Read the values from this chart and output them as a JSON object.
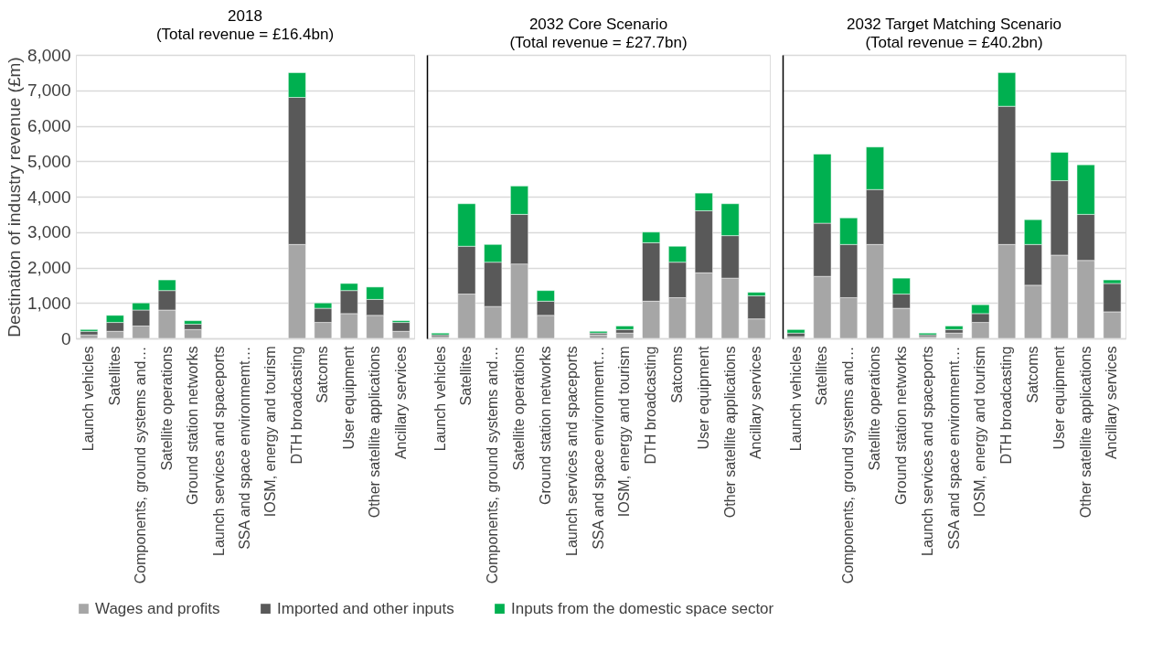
{
  "chart_data": [
    {
      "type": "bar",
      "stacked": true,
      "title": "2018",
      "subtitle": "(Total revenue = £16.4bn)",
      "ylabel": "Destination of industry revenue (£m)",
      "categories": [
        "Launch vehicles",
        "Satellites",
        "Components, ground systems and…",
        "Satellite operations",
        "Ground station networks",
        "Launch services and spaceports",
        "SSA and space environmemt…",
        "IOSM, energy and tourism",
        "DTH broadcasting",
        "Satcoms",
        "User equipment",
        "Other satellite applications",
        "Ancillary services"
      ],
      "ylim": [
        0,
        8000
      ],
      "yticks": [
        0,
        {
          "value": 1000,
          "label": "1,000"
        },
        {
          "value": 2000,
          "label": "2,000"
        },
        {
          "value": 3000,
          "label": "3,000"
        },
        {
          "value": 4000,
          "label": "4,000"
        },
        {
          "value": 5000,
          "label": "5,000"
        },
        {
          "value": 6000,
          "label": "6,000"
        },
        {
          "value": 7000,
          "label": "7,000"
        },
        {
          "value": 8000,
          "label": "8,000"
        }
      ],
      "grid": "y",
      "legend": "bottom",
      "series": [
        {
          "name": "Wages and profits",
          "color": "#a6a6a6",
          "values": [
            100,
            200,
            350,
            800,
            250,
            null,
            null,
            null,
            2650,
            450,
            700,
            650,
            200
          ]
        },
        {
          "name": "Imported and other inputs",
          "color": "#595959",
          "values": [
            100,
            250,
            450,
            550,
            150,
            null,
            null,
            null,
            4150,
            400,
            650,
            450,
            250
          ]
        },
        {
          "name": "Inputs from the domestic space sector",
          "color": "#00b050",
          "values": [
            50,
            200,
            200,
            300,
            100,
            null,
            null,
            null,
            700,
            150,
            200,
            350,
            50
          ]
        }
      ]
    },
    {
      "type": "bar",
      "stacked": true,
      "title": "2032 Core Scenario",
      "subtitle": "(Total revenue = £27.7bn)",
      "categories": [
        "Launch vehicles",
        "Satellites",
        "Components, ground systems and…",
        "Satellite operations",
        "Ground station networks",
        "Launch services and spaceports",
        "SSA and space environmemt…",
        "IOSM, energy and tourism",
        "DTH broadcasting",
        "Satcoms",
        "User equipment",
        "Other satellite applications",
        "Ancillary services"
      ],
      "ylim": [
        0,
        8000
      ],
      "yticks": [
        0,
        1000,
        2000,
        3000,
        4000,
        5000,
        6000,
        7000,
        8000
      ],
      "tick_labels": "x",
      "grid": "y",
      "legend": "bottom",
      "series": [
        {
          "name": "Wages and profits",
          "color": "#a6a6a6",
          "values": [
            50,
            1250,
            900,
            2100,
            650,
            null,
            100,
            150,
            1050,
            1150,
            1850,
            1700,
            550
          ]
        },
        {
          "name": "Imported and other inputs",
          "color": "#595959",
          "values": [
            50,
            1350,
            1250,
            1400,
            400,
            null,
            50,
            100,
            1650,
            1000,
            1750,
            1200,
            650
          ]
        },
        {
          "name": "Inputs from the domestic space sector",
          "color": "#00b050",
          "values": [
            50,
            1200,
            500,
            800,
            300,
            null,
            50,
            100,
            300,
            450,
            500,
            900,
            100
          ]
        }
      ]
    },
    {
      "type": "bar",
      "stacked": true,
      "title": "2032 Target Matching Scenario",
      "subtitle": "(Total revenue = £40.2bn)",
      "categories": [
        "Launch vehicles",
        "Satellites",
        "Components, ground systems and…",
        "Satellite operations",
        "Ground station networks",
        "Launch services and spaceports",
        "SSA and space environmemt…",
        "IOSM, energy and tourism",
        "DTH broadcasting",
        "Satcoms",
        "User equipment",
        "Other satellite applications",
        "Ancillary services"
      ],
      "ylim": [
        0,
        8000
      ],
      "yticks": [
        0,
        1000,
        2000,
        3000,
        4000,
        5000,
        6000,
        7000,
        8000
      ],
      "tick_labels": "x",
      "grid": "y",
      "legend": "bottom",
      "series": [
        {
          "name": "Wages and profits",
          "color": "#a6a6a6",
          "values": [
            50,
            1750,
            1150,
            2650,
            850,
            50,
            150,
            450,
            2650,
            1500,
            2350,
            2200,
            750
          ]
        },
        {
          "name": "Imported and other inputs",
          "color": "#595959",
          "values": [
            100,
            1500,
            1500,
            1550,
            400,
            50,
            100,
            250,
            3900,
            1150,
            2100,
            1300,
            800
          ]
        },
        {
          "name": "Inputs from the domestic space sector",
          "color": "#00b050",
          "values": [
            100,
            1950,
            750,
            1200,
            450,
            50,
            100,
            250,
            950,
            700,
            800,
            1400,
            100
          ]
        }
      ]
    }
  ]
}
